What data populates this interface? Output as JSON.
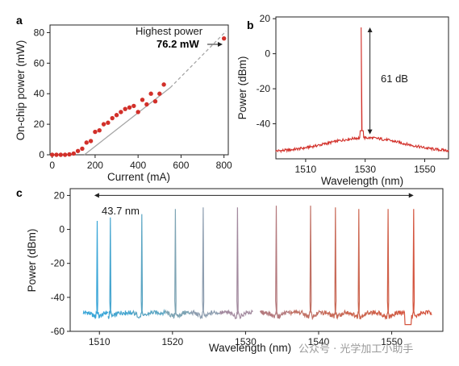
{
  "chart_data": [
    {
      "panel": "a",
      "type": "scatter",
      "xlabel": "Current (mA)",
      "ylabel": "On-chip power (mW)",
      "xlim": [
        -10,
        820
      ],
      "ylim": [
        0,
        85
      ],
      "xticks": [
        0,
        200,
        400,
        600,
        800
      ],
      "yticks": [
        0,
        20,
        40,
        60,
        80
      ],
      "point_color": "#d2302a",
      "fit_color": "#a6a6a6",
      "points": [
        {
          "x": 0,
          "y": 0
        },
        {
          "x": 20,
          "y": 0
        },
        {
          "x": 40,
          "y": 0
        },
        {
          "x": 60,
          "y": 0
        },
        {
          "x": 80,
          "y": 0.3
        },
        {
          "x": 100,
          "y": 0.8
        },
        {
          "x": 120,
          "y": 2.5
        },
        {
          "x": 140,
          "y": 4
        },
        {
          "x": 160,
          "y": 8
        },
        {
          "x": 180,
          "y": 9
        },
        {
          "x": 200,
          "y": 15
        },
        {
          "x": 220,
          "y": 16
        },
        {
          "x": 240,
          "y": 20
        },
        {
          "x": 260,
          "y": 21
        },
        {
          "x": 280,
          "y": 24
        },
        {
          "x": 300,
          "y": 26
        },
        {
          "x": 320,
          "y": 28
        },
        {
          "x": 340,
          "y": 30
        },
        {
          "x": 360,
          "y": 31
        },
        {
          "x": 380,
          "y": 32
        },
        {
          "x": 400,
          "y": 28
        },
        {
          "x": 420,
          "y": 36
        },
        {
          "x": 440,
          "y": 33
        },
        {
          "x": 460,
          "y": 40
        },
        {
          "x": 480,
          "y": 35
        },
        {
          "x": 500,
          "y": 40
        },
        {
          "x": 520,
          "y": 46
        },
        {
          "x": 800,
          "y": 76.2
        }
      ],
      "fit_solid": [
        [
          150,
          0
        ],
        [
          550,
          44
        ]
      ],
      "fit_dashed": [
        [
          550,
          44
        ],
        [
          810,
          81
        ]
      ],
      "annotation": {
        "line1": "Highest power",
        "line2": "76.2 mW",
        "x": 800,
        "y": 76.2
      }
    },
    {
      "panel": "b",
      "type": "line",
      "xlabel": "Wavelength (nm)",
      "ylabel": "Power (dBm)",
      "xlim": [
        1500,
        1558
      ],
      "ylim": [
        -60,
        21
      ],
      "xticks": [
        1510,
        1530,
        1550
      ],
      "yticks": [
        -40,
        -20,
        0,
        20
      ],
      "color": "#d2302a",
      "peak": {
        "x": 1528.8,
        "y": 15
      },
      "floor": -46,
      "annotation": "61 dB"
    },
    {
      "panel": "c",
      "type": "line",
      "xlabel": "Wavelength (nm)",
      "ylabel": "Power (dBm)",
      "xlim": [
        1506,
        1557
      ],
      "ylim": [
        -60,
        24
      ],
      "xticks": [
        1510,
        1520,
        1530,
        1540,
        1550
      ],
      "yticks": [
        -60,
        -40,
        -20,
        0,
        20
      ],
      "span_label": "43.7 nm",
      "span": [
        1509.3,
        1553
      ],
      "series": [
        {
          "peak_x": 1509.7,
          "peak_y": 5,
          "color": "#3aa6d8",
          "seg": [
            1507.8,
            1511.2
          ]
        },
        {
          "peak_x": 1511.5,
          "peak_y": 7,
          "color": "#45a5cf",
          "seg": [
            1511.2,
            1514.5
          ]
        },
        {
          "peak_x": 1515.8,
          "peak_y": 9,
          "color": "#5aa5c3",
          "seg": [
            1514.5,
            1519
          ]
        },
        {
          "peak_x": 1520.4,
          "peak_y": 12,
          "color": "#7ea4b4",
          "seg": [
            1519,
            1522.5
          ]
        },
        {
          "peak_x": 1524.2,
          "peak_y": 13,
          "color": "#8e9eb0",
          "seg": [
            1522.5,
            1526.5
          ]
        },
        {
          "peak_x": 1528.9,
          "peak_y": 13,
          "color": "#a2899e",
          "seg": [
            1526.5,
            1531
          ]
        },
        {
          "peak_x": 1534.2,
          "peak_y": 14,
          "color": "#b47a7e",
          "seg": [
            1532,
            1536
          ]
        },
        {
          "peak_x": 1538.9,
          "peak_y": 14,
          "color": "#c07064",
          "seg": [
            1536,
            1540.5
          ]
        },
        {
          "peak_x": 1542.3,
          "peak_y": 13,
          "color": "#c86a58",
          "seg": [
            1540.5,
            1543.8
          ]
        },
        {
          "peak_x": 1545.5,
          "peak_y": 12,
          "color": "#cc6650",
          "seg": [
            1543.8,
            1547.5
          ]
        },
        {
          "peak_x": 1549.5,
          "peak_y": 12,
          "color": "#d05f48",
          "seg": [
            1547.5,
            1551
          ]
        },
        {
          "peak_x": 1553,
          "peak_y": 12,
          "color": "#d4543e",
          "seg": [
            1551,
            1555.5
          ]
        }
      ]
    }
  ],
  "watermark": "公众号 · 光学加工小助手"
}
